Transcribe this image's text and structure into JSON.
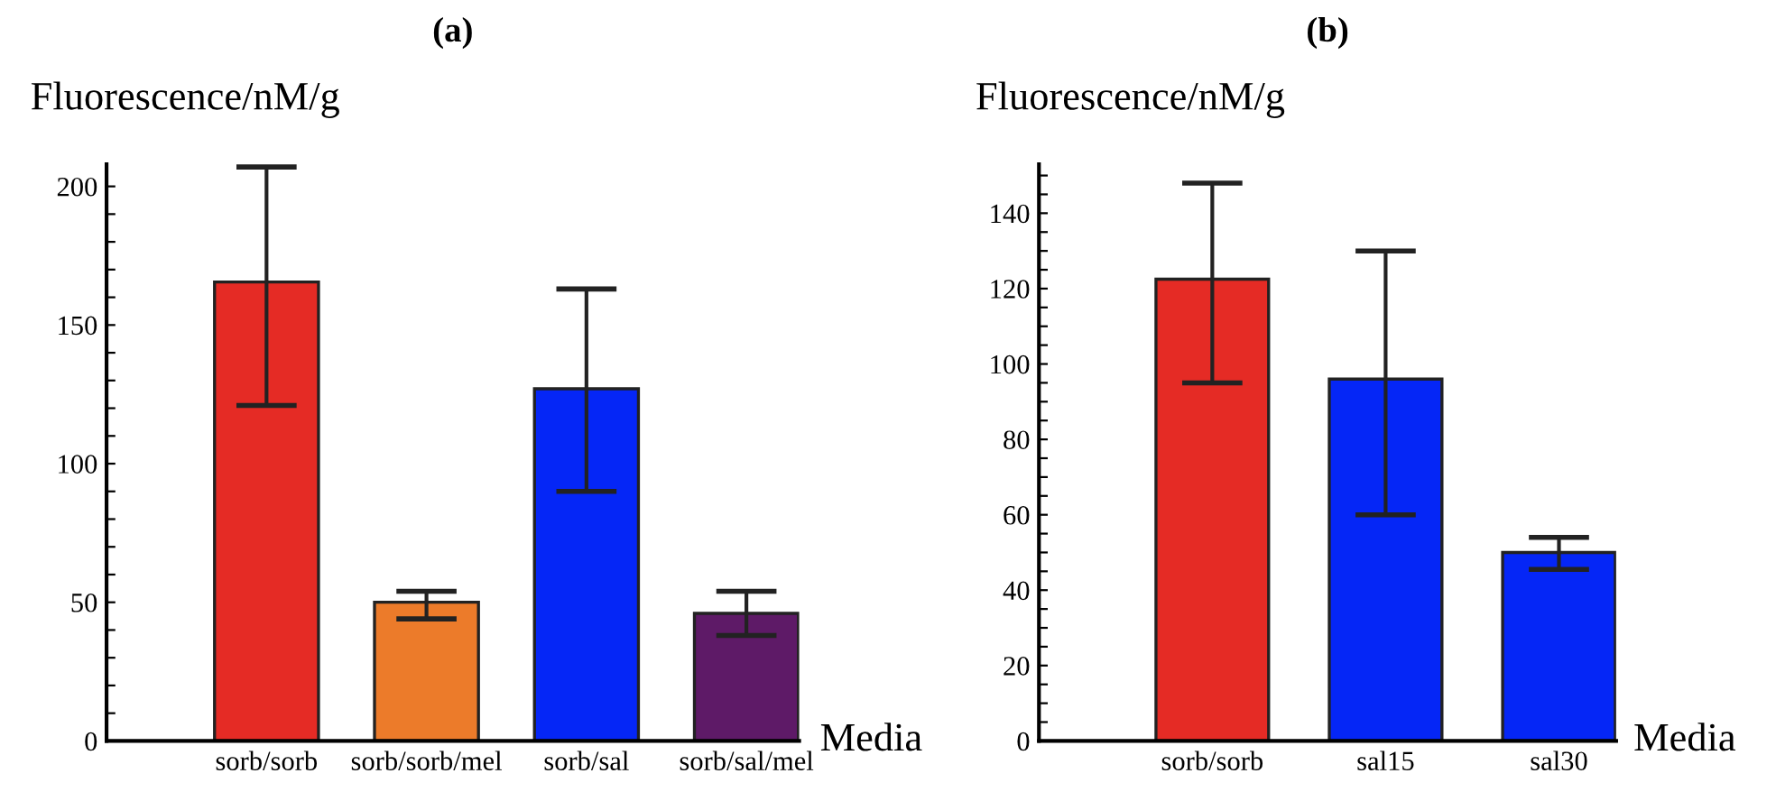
{
  "chart_data": [
    {
      "type": "bar",
      "title": "(a)",
      "ylabel": "Fluorescence/nM/g",
      "xlabel": "Media",
      "categories": [
        "sorb/sorb",
        "sorb/sorb/mel",
        "sorb/sal",
        "sorb/sal/mel"
      ],
      "values": [
        165.5,
        50,
        127,
        46
      ],
      "colors": [
        "#e52b25",
        "#ec7b2a",
        "#0526f6",
        "#5e1a67"
      ],
      "errors": [
        [
          121,
          207
        ],
        [
          44,
          54
        ],
        [
          90,
          163
        ],
        [
          38,
          54
        ]
      ],
      "ylim": [
        0,
        208
      ],
      "yticks": [
        0,
        {
          "value": 10,
          "label": null
        },
        {
          "value": 20,
          "label": null
        },
        {
          "value": 30,
          "label": null
        },
        {
          "value": 40,
          "label": null
        },
        50,
        {
          "value": 60,
          "label": null
        },
        {
          "value": 70,
          "label": null
        },
        {
          "value": 80,
          "label": null
        },
        {
          "value": 90,
          "label": null
        },
        100,
        {
          "value": 110,
          "label": null
        },
        {
          "value": 120,
          "label": null
        },
        {
          "value": 130,
          "label": null
        },
        {
          "value": 140,
          "label": null
        },
        150,
        {
          "value": 160,
          "label": null
        },
        {
          "value": 170,
          "label": null
        },
        {
          "value": 180,
          "label": null
        },
        {
          "value": 190,
          "label": null
        },
        200
      ],
      "grid": false,
      "legend": false
    },
    {
      "type": "bar",
      "title": "(b)",
      "ylabel": "Fluorescence/nM/g",
      "xlabel": "Media",
      "categories": [
        "sorb/sorb",
        "sal15",
        "sal30"
      ],
      "values": [
        122.5,
        96,
        50
      ],
      "colors": [
        "#e52b25",
        "#0526f6",
        "#0526f6"
      ],
      "errors": [
        [
          95,
          148
        ],
        [
          60,
          130
        ],
        [
          45.5,
          54
        ]
      ],
      "ylim": [
        0,
        153
      ],
      "yticks": [
        0,
        {
          "value": 5,
          "label": null
        },
        {
          "value": 10,
          "label": null
        },
        {
          "value": 15,
          "label": null
        },
        20,
        {
          "value": 25,
          "label": null
        },
        {
          "value": 30,
          "label": null
        },
        {
          "value": 35,
          "label": null
        },
        40,
        {
          "value": 45,
          "label": null
        },
        {
          "value": 50,
          "label": null
        },
        {
          "value": 55,
          "label": null
        },
        60,
        {
          "value": 65,
          "label": null
        },
        {
          "value": 70,
          "label": null
        },
        {
          "value": 75,
          "label": null
        },
        80,
        {
          "value": 85,
          "label": null
        },
        {
          "value": 90,
          "label": null
        },
        {
          "value": 95,
          "label": null
        },
        100,
        {
          "value": 105,
          "label": null
        },
        {
          "value": 110,
          "label": null
        },
        {
          "value": 115,
          "label": null
        },
        120,
        {
          "value": 125,
          "label": null
        },
        {
          "value": 130,
          "label": null
        },
        {
          "value": 135,
          "label": null
        },
        140,
        {
          "value": 145,
          "label": null
        },
        {
          "value": 150,
          "label": null
        }
      ],
      "grid": false,
      "legend": false
    }
  ]
}
